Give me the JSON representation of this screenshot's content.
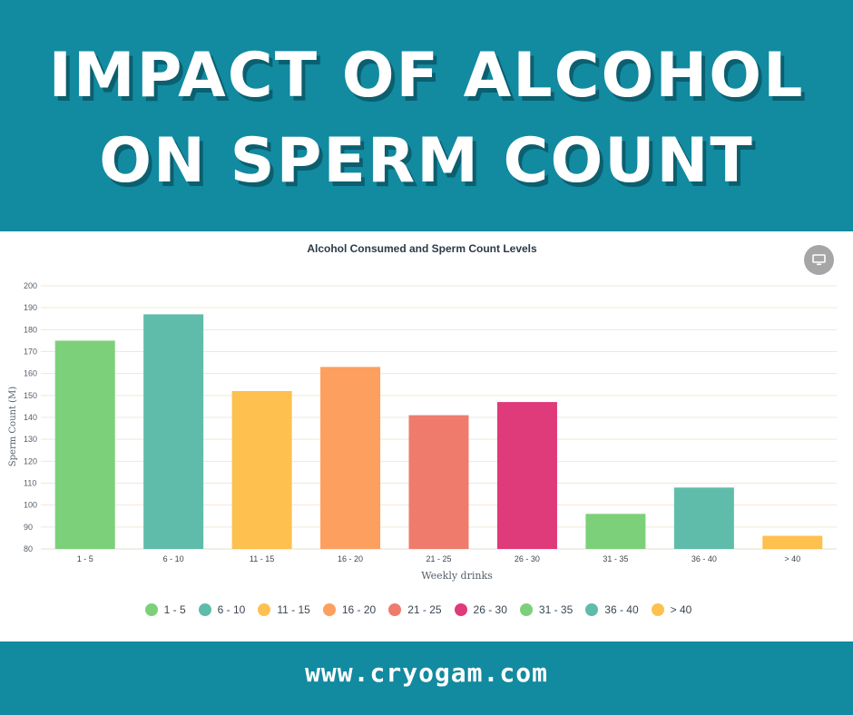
{
  "header": {
    "line1": "IMPACT OF ALCOHOL",
    "line2": "ON SPERM COUNT"
  },
  "footer": {
    "website": "www.cryogam.com"
  },
  "screen_button": {
    "icon": "monitor-icon"
  },
  "colors": {
    "brand": "#128aa0",
    "green": "#7dd07a",
    "teal": "#5fbcaa",
    "yellow": "#fec04e",
    "orange": "#fd9f5e",
    "salmon": "#ef7b6c",
    "magenta": "#df3a7a"
  },
  "chart_data": {
    "type": "bar",
    "title": "Alcohol Consumed and Sperm Count Levels",
    "xlabel": "Weekly drinks",
    "ylabel": "Sperm Count (M)",
    "categories": [
      "1 - 5",
      "6 - 10",
      "11 - 15",
      "16 - 20",
      "21 - 25",
      "26 - 30",
      "31 - 35",
      "36 - 40",
      "> 40"
    ],
    "values": [
      175,
      187,
      152,
      163,
      141,
      147,
      96,
      108,
      86
    ],
    "bar_colors": [
      "#7dd07a",
      "#5fbcaa",
      "#fec04e",
      "#fd9f5e",
      "#ef7b6c",
      "#df3a7a",
      "#7dd07a",
      "#5fbcaa",
      "#fec04e"
    ],
    "ylim": [
      80,
      200
    ],
    "yticks": [
      80,
      90,
      100,
      110,
      120,
      130,
      140,
      150,
      160,
      170,
      180,
      190,
      200
    ],
    "grid": true,
    "legend_position": "bottom"
  }
}
